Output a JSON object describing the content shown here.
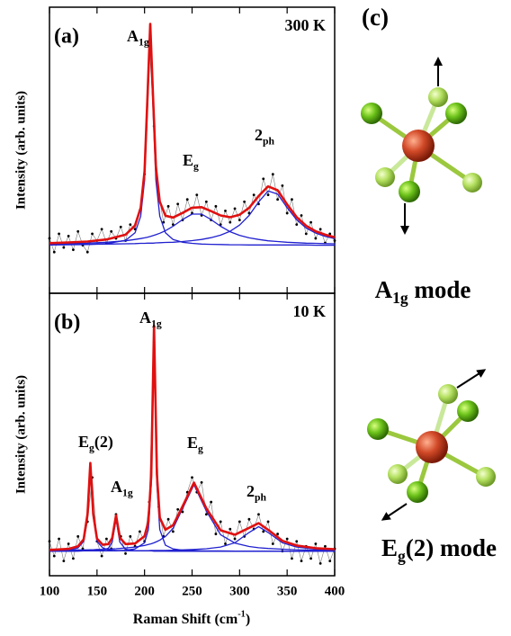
{
  "chart_data": [
    {
      "type": "line",
      "panel_label": "(a)",
      "temperature": "300 K",
      "y_label": "Intensity (arb. units)",
      "xlim": [
        100,
        400
      ],
      "xticks": [
        100,
        150,
        200,
        250,
        300,
        350,
        400
      ],
      "xtick_labels": false,
      "ylim": [
        -21,
        104
      ],
      "labels": [
        {
          "text": "A",
          "sub": "1g"
        },
        {
          "text": "E",
          "sub": "g"
        },
        {
          "text": "2",
          "sub": "ph"
        }
      ],
      "x": [
        100,
        120,
        140,
        160,
        180,
        190,
        196,
        200,
        203,
        206,
        209,
        212,
        216,
        222,
        230,
        240,
        250,
        260,
        270,
        280,
        290,
        300,
        310,
        320,
        330,
        340,
        350,
        360,
        370,
        380,
        390,
        400
      ],
      "series": [
        {
          "style": "points",
          "color": "#000000",
          "x": [
            100,
            105,
            110,
            115,
            120,
            125,
            130,
            135,
            140,
            145,
            150,
            155,
            160,
            165,
            170,
            175,
            180,
            185,
            190,
            195,
            200,
            205,
            210,
            215,
            220,
            225,
            230,
            235,
            240,
            245,
            250,
            255,
            260,
            265,
            270,
            275,
            280,
            285,
            290,
            295,
            300,
            305,
            310,
            315,
            320,
            325,
            330,
            335,
            340,
            345,
            350,
            355,
            360,
            365,
            370,
            375,
            380,
            385,
            390,
            395,
            400
          ],
          "values": [
            3,
            -3,
            5,
            -1,
            4,
            -2,
            6,
            0,
            -3,
            5,
            2,
            7,
            1,
            6,
            3,
            8,
            2,
            9,
            7,
            15,
            31,
            88,
            52,
            22,
            10,
            17,
            9,
            18,
            11,
            20,
            14,
            22,
            13,
            19,
            11,
            17,
            9,
            15,
            10,
            16,
            11,
            19,
            14,
            22,
            18,
            29,
            22,
            31,
            20,
            26,
            14,
            20,
            9,
            13,
            5,
            10,
            3,
            7,
            1,
            5,
            2
          ]
        },
        {
          "style": "line",
          "color": "#2020d0",
          "values": [
            0.1,
            0.2,
            0.3,
            0.7,
            2.1,
            5.4,
            12.7,
            28.3,
            58.9,
            92,
            58.9,
            28.3,
            12.7,
            5.4,
            2.5,
            1.3,
            0.8,
            0.5,
            0.4,
            0.3,
            0.2,
            0.2,
            0.1,
            0.1,
            0.1,
            0.1,
            0.1,
            0.1,
            0.1,
            0,
            0,
            0
          ]
        },
        {
          "style": "line",
          "color": "#2020d0",
          "values": [
            0.5,
            0.7,
            0.9,
            1.3,
            1.9,
            2.5,
            2.9,
            3.2,
            3.5,
            3.8,
            4.2,
            4.6,
            5.2,
            6.3,
            8.3,
            11.2,
            13.6,
            13.6,
            11.2,
            8.3,
            5.9,
            4.3,
            3.2,
            2.5,
            1.9,
            1.6,
            1.3,
            1.1,
            0.9,
            0.8,
            0.7,
            0.6
          ]
        },
        {
          "style": "line",
          "color": "#2020d0",
          "values": [
            0.3,
            0.3,
            0.4,
            0.5,
            0.6,
            0.7,
            0.8,
            0.8,
            0.9,
            0.9,
            0.9,
            1,
            1.1,
            1.2,
            1.3,
            1.6,
            2,
            2.5,
            3.3,
            4.4,
            6.1,
            8.8,
            13,
            18.9,
            23.7,
            22.3,
            16.4,
            11.1,
            7.5,
            5.3,
            3.9,
            2.9
          ]
        },
        {
          "style": "line",
          "color": "#e01010",
          "values": [
            0.9,
            1.2,
            1.6,
            2.5,
            4.6,
            8.6,
            16.4,
            32.3,
            63.3,
            96.7,
            64,
            33.9,
            19,
            12.9,
            12.1,
            14.1,
            16.4,
            16.6,
            14.9,
            13,
            12.2,
            13.3,
            16.3,
            21.5,
            25.7,
            24,
            17.8,
            12.3,
            8.5,
            6.1,
            4.6,
            3.5
          ]
        }
      ]
    },
    {
      "type": "line",
      "panel_label": "(b)",
      "temperature": "10 K",
      "y_label": "Intensity (arb. units)",
      "x_label": {
        "text": "Raman Shift (cm",
        "sup": "-1",
        "after": ")"
      },
      "xlim": [
        100,
        400
      ],
      "xticks": [
        100,
        150,
        200,
        250,
        300,
        350,
        400
      ],
      "xtick_labels": true,
      "ylim": [
        -10,
        105
      ],
      "labels": [
        {
          "text": "A",
          "sub": "1g"
        },
        {
          "text": "E",
          "sub": "g",
          "after": "(2)"
        },
        {
          "text": "A",
          "sub": "1g"
        },
        {
          "text": "E",
          "sub": "g"
        },
        {
          "text": "2",
          "sub": "ph"
        }
      ],
      "x": [
        100,
        120,
        130,
        136,
        140,
        143,
        146,
        150,
        156,
        162,
        166,
        170,
        174,
        180,
        190,
        200,
        204,
        207,
        210,
        213,
        216,
        222,
        230,
        240,
        252,
        265,
        280,
        295,
        310,
        320,
        330,
        345,
        360,
        380,
        400
      ],
      "series": [
        {
          "style": "points",
          "color": "#000000",
          "x": [
            100,
            105,
            110,
            115,
            120,
            125,
            130,
            135,
            140,
            145,
            150,
            155,
            160,
            165,
            170,
            175,
            180,
            185,
            190,
            195,
            200,
            205,
            210,
            215,
            220,
            225,
            230,
            235,
            240,
            245,
            250,
            255,
            260,
            265,
            270,
            275,
            280,
            285,
            290,
            295,
            300,
            305,
            310,
            315,
            320,
            325,
            330,
            335,
            340,
            345,
            350,
            355,
            360,
            365,
            370,
            375,
            380,
            385,
            390,
            395,
            400
          ],
          "values": [
            4,
            -2,
            5,
            -4,
            3,
            -3,
            6,
            1,
            12,
            30,
            4,
            -2,
            5,
            1,
            15,
            6,
            -1,
            6,
            2,
            8,
            4,
            20,
            85,
            18,
            6,
            13,
            8,
            17,
            16,
            24,
            30,
            24,
            28,
            15,
            20,
            7,
            12,
            3,
            9,
            5,
            12,
            6,
            13,
            9,
            15,
            8,
            12,
            3,
            7,
            0,
            5,
            -3,
            4,
            -4,
            2,
            -3,
            3,
            -5,
            2,
            -4,
            1
          ]
        },
        {
          "style": "line",
          "color": "#2020d0",
          "values": [
            0.1,
            0.4,
            1.3,
            4,
            14.3,
            35,
            14.3,
            4,
            1.3,
            0.6,
            0.4,
            0.3,
            0.2,
            0.2,
            0.1,
            0.1,
            0.1,
            0.1,
            0.1,
            0.1,
            0.1,
            0.1,
            0,
            0,
            0,
            0,
            0,
            0,
            0,
            0,
            0,
            0,
            0,
            0,
            0
          ]
        },
        {
          "style": "line",
          "color": "#2020d0",
          "values": [
            0,
            0,
            0,
            0.1,
            0.1,
            0.1,
            0.1,
            0.2,
            0.4,
            1.2,
            3.7,
            13,
            3.7,
            0.8,
            0.2,
            0.1,
            0.1,
            0.1,
            0,
            0,
            0,
            0,
            0,
            0,
            0,
            0,
            0,
            0,
            0,
            0,
            0,
            0,
            0,
            0,
            0
          ]
        },
        {
          "style": "line",
          "color": "#2020d0",
          "values": [
            0,
            0,
            0.1,
            0.1,
            0.1,
            0.1,
            0.1,
            0.1,
            0.1,
            0.2,
            0.2,
            0.2,
            0.3,
            0.4,
            0.9,
            3.4,
            8.8,
            27.1,
            88,
            27.1,
            8.8,
            2.4,
            0.9,
            0.4,
            0.2,
            0.1,
            0.1,
            0,
            0,
            0,
            0,
            0,
            0,
            0,
            0
          ]
        },
        {
          "style": "line",
          "color": "#2020d0",
          "values": [
            0.3,
            0.4,
            0.5,
            0.5,
            0.5,
            0.6,
            0.6,
            0.7,
            0.7,
            0.8,
            0.9,
            1,
            1.1,
            1.3,
            1.7,
            2.3,
            2.7,
            3,
            3.4,
            3.9,
            4.5,
            6,
            9.3,
            17.3,
            27,
            16.3,
            6.7,
            3.3,
            1.9,
            1.4,
            1.1,
            0.8,
            0.6,
            0.4,
            0.3
          ]
        },
        {
          "style": "line",
          "color": "#2020d0",
          "values": [
            0.1,
            0.1,
            0.1,
            0.1,
            0.1,
            0.1,
            0.1,
            0.1,
            0.1,
            0.1,
            0.1,
            0.1,
            0.2,
            0.2,
            0.2,
            0.2,
            0.2,
            0.3,
            0.3,
            0.3,
            0.3,
            0.3,
            0.4,
            0.5,
            0.7,
            1,
            1.7,
            3.4,
            7.6,
            10,
            7.6,
            3.4,
            1.7,
            0.8,
            0.5
          ]
        },
        {
          "style": "line",
          "color": "#e01010",
          "values": [
            0.5,
            0.9,
            2,
            4.8,
            15.1,
            35.9,
            15.2,
            5.1,
            2.6,
            2.9,
            5.3,
            14.6,
            5.5,
            2.9,
            3.1,
            6.1,
            11.9,
            30.6,
            91.8,
            31.3,
            13.6,
            8.7,
            10.6,
            18.2,
            27.9,
            17.4,
            8.5,
            6.7,
            9.5,
            11.4,
            8.7,
            4.2,
            2.3,
            1.2,
            0.8
          ]
        }
      ]
    }
  ],
  "panel_c": {
    "label": "(c)",
    "modes": [
      {
        "text": "A",
        "sub": "1g",
        "after": " mode"
      },
      {
        "text": "E",
        "sub": "g",
        "after": "(2) mode"
      }
    ]
  }
}
